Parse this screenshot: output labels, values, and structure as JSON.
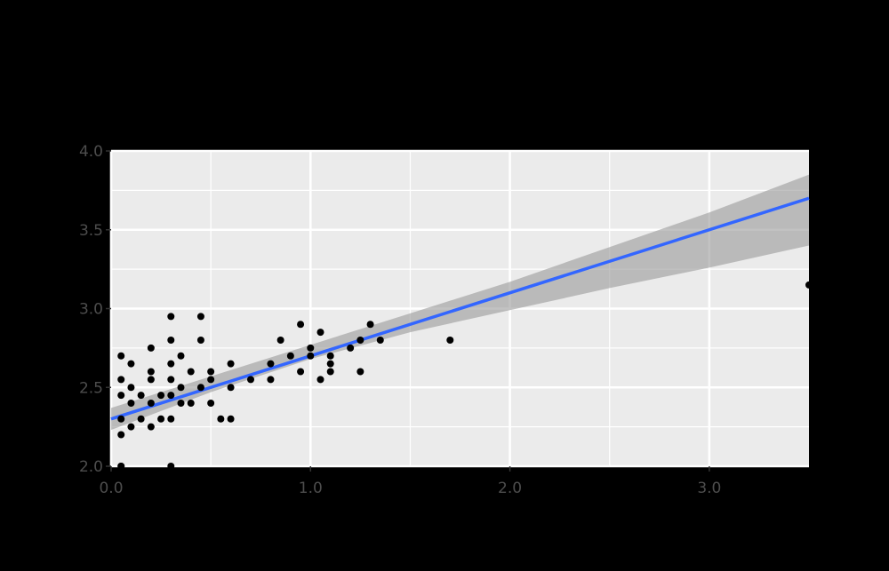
{
  "chart_data": {
    "type": "scatter",
    "title": "",
    "xlabel": "",
    "ylabel": "",
    "xlim": [
      0,
      3.5
    ],
    "ylim": [
      2.0,
      4.0
    ],
    "x_ticks": [
      0,
      1,
      2,
      3
    ],
    "x_tick_labels": [
      "0.0",
      "1.0",
      "2.0",
      "3.0"
    ],
    "y_ticks": [
      2.0,
      2.5,
      3.0,
      3.5,
      4.0
    ],
    "y_tick_labels": [
      "2.0",
      "2.5",
      "3.0",
      "3.5",
      "4.0"
    ],
    "grid": true,
    "legend": "none",
    "points": {
      "x": [
        0.05,
        0.05,
        0.05,
        0.1,
        0.15,
        0.2,
        0.25,
        0.3,
        0.05,
        0.1,
        0.15,
        0.2,
        0.25,
        0.3,
        0.35,
        0.4,
        0.5,
        0.55,
        0.6,
        0.05,
        0.1,
        0.2,
        0.3,
        0.35,
        0.45,
        0.5,
        0.6,
        0.7,
        0.8,
        0.95,
        1.05,
        1.1,
        0.1,
        0.2,
        0.3,
        0.4,
        0.5,
        0.6,
        0.8,
        0.9,
        1.0,
        1.1,
        1.25,
        0.05,
        0.2,
        0.35,
        1.0,
        1.1,
        1.2,
        0.3,
        0.45,
        0.85,
        1.05,
        1.25,
        1.35,
        1.7,
        0.3,
        0.45,
        0.95,
        1.3,
        0.05,
        0.3,
        3.5
      ],
      "y": [
        2.0,
        2.2,
        2.3,
        2.25,
        2.3,
        2.25,
        2.3,
        2.3,
        2.45,
        2.4,
        2.45,
        2.4,
        2.45,
        2.45,
        2.4,
        2.4,
        2.4,
        2.3,
        2.3,
        2.55,
        2.5,
        2.55,
        2.55,
        2.5,
        2.5,
        2.55,
        2.5,
        2.55,
        2.55,
        2.6,
        2.55,
        2.6,
        2.65,
        2.6,
        2.65,
        2.6,
        2.6,
        2.65,
        2.65,
        2.7,
        2.7,
        2.65,
        2.6,
        2.7,
        2.75,
        2.7,
        2.75,
        2.7,
        2.75,
        2.8,
        2.8,
        2.8,
        2.85,
        2.8,
        2.8,
        2.8,
        2.95,
        2.95,
        2.9,
        2.9,
        2.0,
        2.0,
        3.15
      ]
    },
    "fit_line": {
      "x": [
        0,
        3.5
      ],
      "y": [
        2.3,
        3.7
      ],
      "color": "#3366ff"
    },
    "confidence_band": {
      "x": [
        0,
        0.5,
        1.0,
        1.5,
        2.0,
        2.5,
        3.0,
        3.5
      ],
      "lower": [
        2.23,
        2.47,
        2.68,
        2.85,
        2.99,
        3.13,
        3.26,
        3.4
      ],
      "upper": [
        2.37,
        2.57,
        2.77,
        2.97,
        3.17,
        3.39,
        3.61,
        3.85
      ]
    },
    "colors": {
      "panel": "#ebebeb",
      "grid": "#ffffff",
      "points": "#000000",
      "band": "#999999",
      "line": "#3366ff"
    }
  }
}
